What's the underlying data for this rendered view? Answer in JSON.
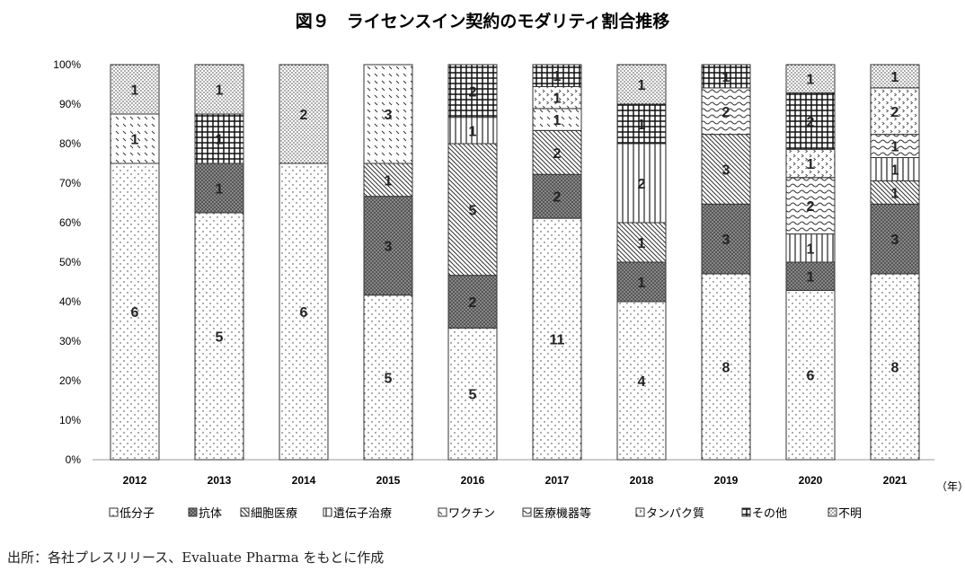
{
  "chart_data": {
    "type": "bar",
    "stacked": "percent",
    "title": "図９　ライセンスイン契約のモダリティ割合推移",
    "x_unit_label": "（年）",
    "categories": [
      "2012",
      "2013",
      "2014",
      "2015",
      "2016",
      "2017",
      "2018",
      "2019",
      "2020",
      "2021"
    ],
    "ylim": [
      0,
      100
    ],
    "yticks": [
      "0%",
      "10%",
      "20%",
      "30%",
      "40%",
      "50%",
      "60%",
      "70%",
      "80%",
      "90%",
      "100%"
    ],
    "legend_position": "bottom",
    "grid": false,
    "series": [
      {
        "name": "低分子",
        "pattern": "sparse-dots",
        "values": [
          6,
          5,
          6,
          5,
          5,
          11,
          4,
          8,
          6,
          8
        ]
      },
      {
        "name": "抗体",
        "pattern": "dark-checker",
        "values": [
          0,
          1,
          0,
          3,
          2,
          2,
          1,
          3,
          1,
          3
        ]
      },
      {
        "name": "細胞医療",
        "pattern": "diagonal-lines",
        "values": [
          0,
          0,
          0,
          1,
          5,
          2,
          1,
          3,
          0,
          1
        ]
      },
      {
        "name": "遺伝子治療",
        "pattern": "vertical-lines",
        "values": [
          0,
          0,
          0,
          0,
          1,
          0,
          2,
          0,
          1,
          1
        ]
      },
      {
        "name": "ワクチン",
        "pattern": "dashed-diagonal",
        "values": [
          1,
          0,
          0,
          3,
          0,
          1,
          0,
          0,
          0,
          0
        ]
      },
      {
        "name": "医療機器等",
        "pattern": "wave",
        "values": [
          0,
          0,
          0,
          0,
          0,
          0,
          0,
          2,
          2,
          1
        ]
      },
      {
        "name": "タンパク質",
        "pattern": "chevron-dots",
        "values": [
          0,
          0,
          0,
          0,
          0,
          1,
          0,
          0,
          1,
          2
        ]
      },
      {
        "name": "その他",
        "pattern": "grid",
        "values": [
          0,
          1,
          0,
          0,
          2,
          1,
          1,
          1,
          2,
          0
        ]
      },
      {
        "name": "不明",
        "pattern": "dense-dots",
        "values": [
          1,
          1,
          2,
          0,
          0,
          0,
          1,
          0,
          1,
          1
        ]
      }
    ]
  },
  "source_note": "出所：各社プレスリリース、Evaluate Pharma をもとに作成"
}
